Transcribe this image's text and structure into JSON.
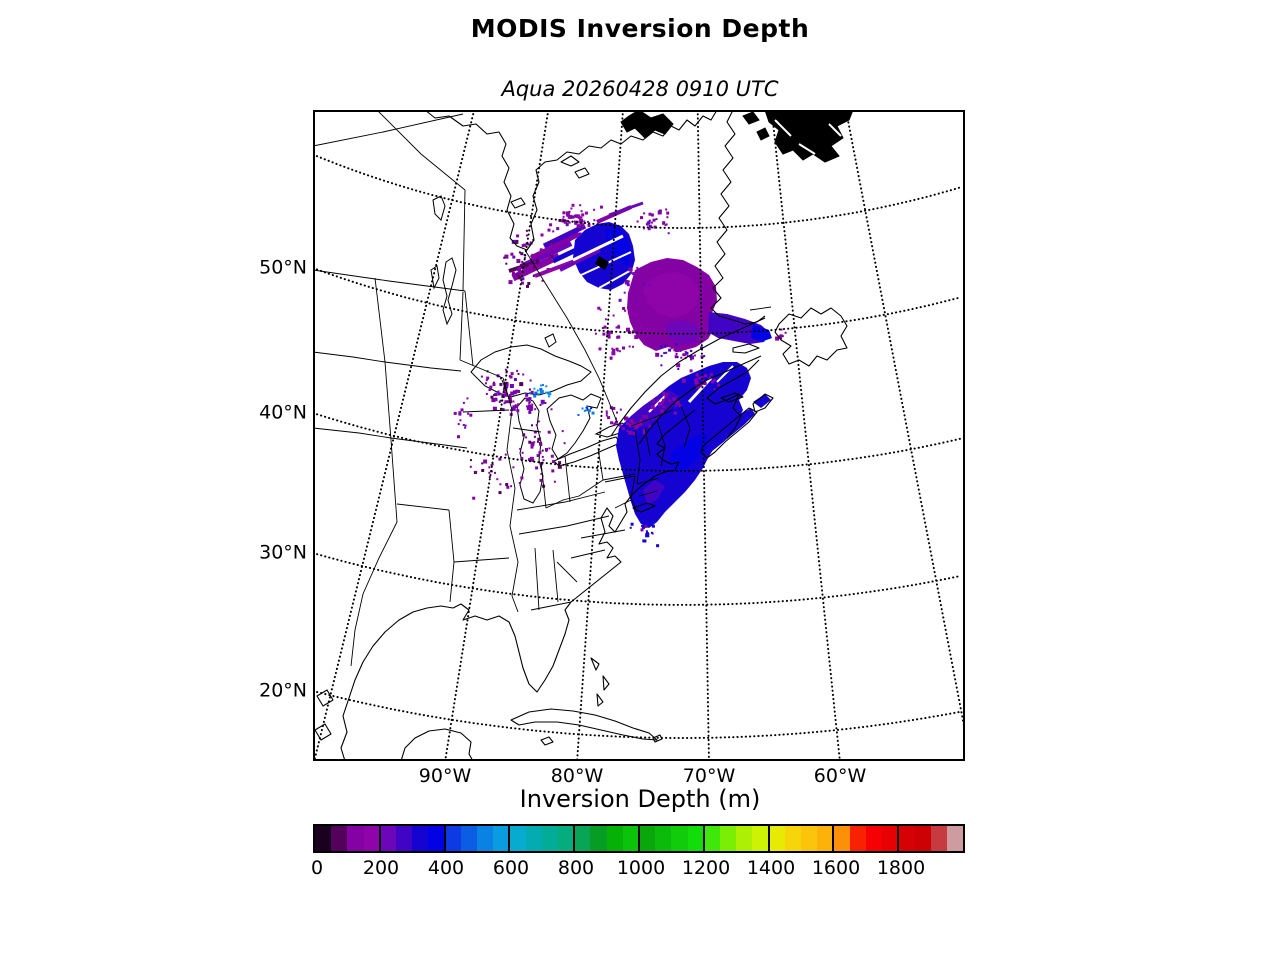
{
  "figure": {
    "title": "MODIS Inversion Depth",
    "subtitle": "Aqua 20260428 0910 UTC"
  },
  "axes": {
    "lat_ticks": [
      "50°N",
      "40°N",
      "30°N",
      "20°N"
    ],
    "lon_ticks": [
      "90°W",
      "80°W",
      "70°W",
      "60°W"
    ]
  },
  "colorbar": {
    "label": "Inversion Depth (m)",
    "min": 0,
    "max": 2000,
    "bin_size_m": 50,
    "tick_labels": [
      "0",
      "200",
      "400",
      "600",
      "800",
      "1000",
      "1200",
      "1400",
      "1600",
      "1800"
    ],
    "colors": [
      "#1b0120",
      "#53015a",
      "#8402a4",
      "#8e04a8",
      "#6d06b8",
      "#4204c4",
      "#1503d2",
      "#0302e4",
      "#0d3ae2",
      "#0b5ee4",
      "#0a82e4",
      "#099ce0",
      "#07abd0",
      "#04acb2",
      "#03ac96",
      "#05ac7e",
      "#08a556",
      "#079c22",
      "#06b006",
      "#0bc30a",
      "#0aa70a",
      "#0cba0c",
      "#10cc0a",
      "#12dd0b",
      "#3fe80a",
      "#7bee06",
      "#adf004",
      "#cdf203",
      "#e8ea04",
      "#f6d60a",
      "#fcc40b",
      "#fcb20a",
      "#fc9009",
      "#f82202",
      "#f50103",
      "#e80103",
      "#d50104",
      "#cd0104",
      "#c63a40",
      "#cd9ba0"
    ]
  },
  "chart_data": {
    "type": "heatmap",
    "title": "MODIS Inversion Depth",
    "subtitle": "Aqua 20260428 0910 UTC",
    "colorbar_label": "Inversion Depth (m)",
    "value_range_m": [
      0,
      2000
    ],
    "bin_size_m": 50,
    "x_tick_labels": [
      "90°W",
      "80°W",
      "70°W",
      "60°W"
    ],
    "y_tick_labels": [
      "50°N",
      "40°N",
      "30°N",
      "20°N"
    ],
    "grid": "dotted graticule every 10 degrees, curved conic-style over eastern North America",
    "legend_position": "horizontal discrete colorbar below map, 40 bins of 50 m",
    "regions": [
      {
        "area": "eastern James Bay coast (Quebec)",
        "approx_values_m": "250-400",
        "appearance": "round deep-blue patch with white streaks"
      },
      {
        "area": "west / north of James Bay (northern Ontario)",
        "approx_values_m": "50-300",
        "appearance": "angled purple-magenta streaks and scattered specks"
      },
      {
        "area": "central Quebec",
        "approx_values_m": "100-250",
        "appearance": "large magenta-purple blob with violet-blue arm along the north shore of the St. Lawrence"
      },
      {
        "area": "St. Lawrence valley, New England, New Brunswick, Nova Scotia, PEI",
        "approx_values_m": "250-400",
        "appearance": "dense dark-blue mass with black state borders visible on top"
      },
      {
        "area": "Wisconsin / Michigan / upper Great Lakes",
        "approx_values_m": "50-600",
        "appearance": "scattered purple specks with a few bright-blue 450-600 m pixels near Green Bay and Georgian Bay"
      },
      {
        "area": "Iowa / Illinois / Ohio valley",
        "approx_values_m": "50-150",
        "appearance": "very sparse purple specks"
      },
      {
        "area": "western Newfoundland fringe",
        "approx_values_m": "100-150",
        "appearance": "few purple specks"
      }
    ]
  }
}
